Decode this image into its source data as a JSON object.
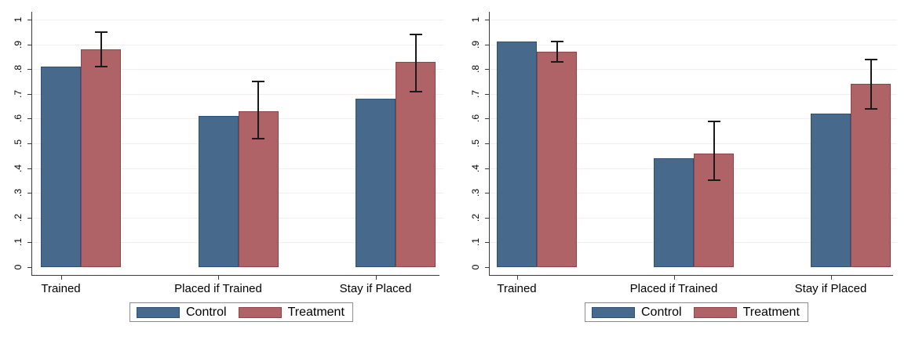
{
  "colors": {
    "control_fill": "#46698c",
    "control_border": "#2b5276",
    "treatment_fill": "#b06366",
    "treatment_border": "#8c4549",
    "error_bar": "#1a1a1a",
    "axis": "#3a3a3a",
    "grid": "#f5eeee",
    "legend_border": "#8f8f8f",
    "background": "#ffffff",
    "text": "#000000"
  },
  "chart_data": [
    {
      "type": "bar",
      "title": "",
      "xlabel": "",
      "ylabel": "",
      "categories": [
        "Trained",
        "Placed if Trained",
        "Stay if Placed"
      ],
      "series": [
        {
          "name": "Control",
          "values": [
            0.81,
            0.61,
            0.68
          ]
        },
        {
          "name": "Treatment",
          "values": [
            0.88,
            0.63,
            0.83
          ],
          "ci_low": [
            0.81,
            0.52,
            0.71
          ],
          "ci_high": [
            0.95,
            0.75,
            0.94
          ]
        }
      ],
      "ylim": [
        0,
        1
      ],
      "ytick_labels": [
        "0",
        ".1",
        ".2",
        ".3",
        ".4",
        ".5",
        ".6",
        ".7",
        ".8",
        ".9",
        "1"
      ],
      "grid": true,
      "error_bars_on": "Treatment",
      "legend_position": "bottom"
    },
    {
      "type": "bar",
      "title": "",
      "xlabel": "",
      "ylabel": "",
      "categories": [
        "Trained",
        "Placed if Trained",
        "Stay if Placed"
      ],
      "series": [
        {
          "name": "Control",
          "values": [
            0.91,
            0.44,
            0.62
          ]
        },
        {
          "name": "Treatment",
          "values": [
            0.87,
            0.46,
            0.74
          ],
          "ci_low": [
            0.83,
            0.35,
            0.64
          ],
          "ci_high": [
            0.91,
            0.59,
            0.84
          ]
        }
      ],
      "ylim": [
        0,
        1
      ],
      "ytick_labels": [
        "0",
        ".1",
        ".2",
        ".3",
        ".4",
        ".5",
        ".6",
        ".7",
        ".8",
        ".9",
        "1"
      ],
      "grid": true,
      "error_bars_on": "Treatment",
      "legend_position": "bottom"
    }
  ]
}
